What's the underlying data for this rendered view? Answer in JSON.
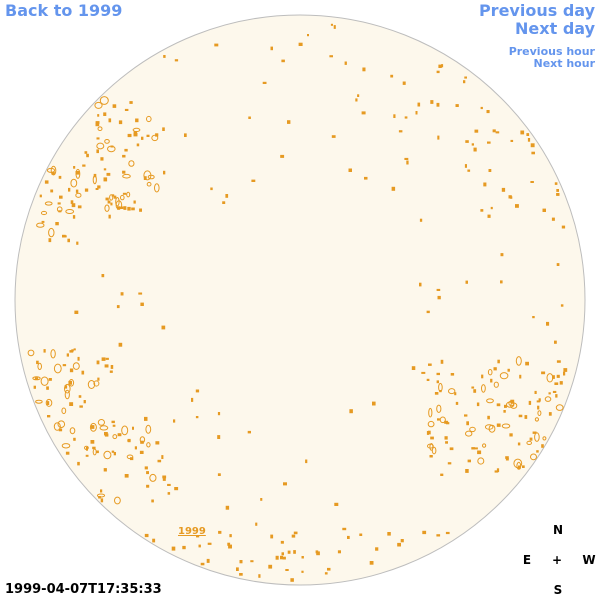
{
  "nav": {
    "back_label": "Back to 1999",
    "prev_day_label": "Previous day",
    "next_day_label": "Next day",
    "prev_hour_label": "Previous hour",
    "next_hour_label": "Next hour"
  },
  "disk": {
    "fill_color": "#fdf8ec",
    "border_color": "#bdbdbd",
    "contour_color": "#e69a22"
  },
  "year_link": "1999",
  "compass": {
    "north": "N",
    "south": "S",
    "east": "E",
    "west": "W",
    "center": "+"
  },
  "timestamp": "1999-04-07T17:35:33"
}
